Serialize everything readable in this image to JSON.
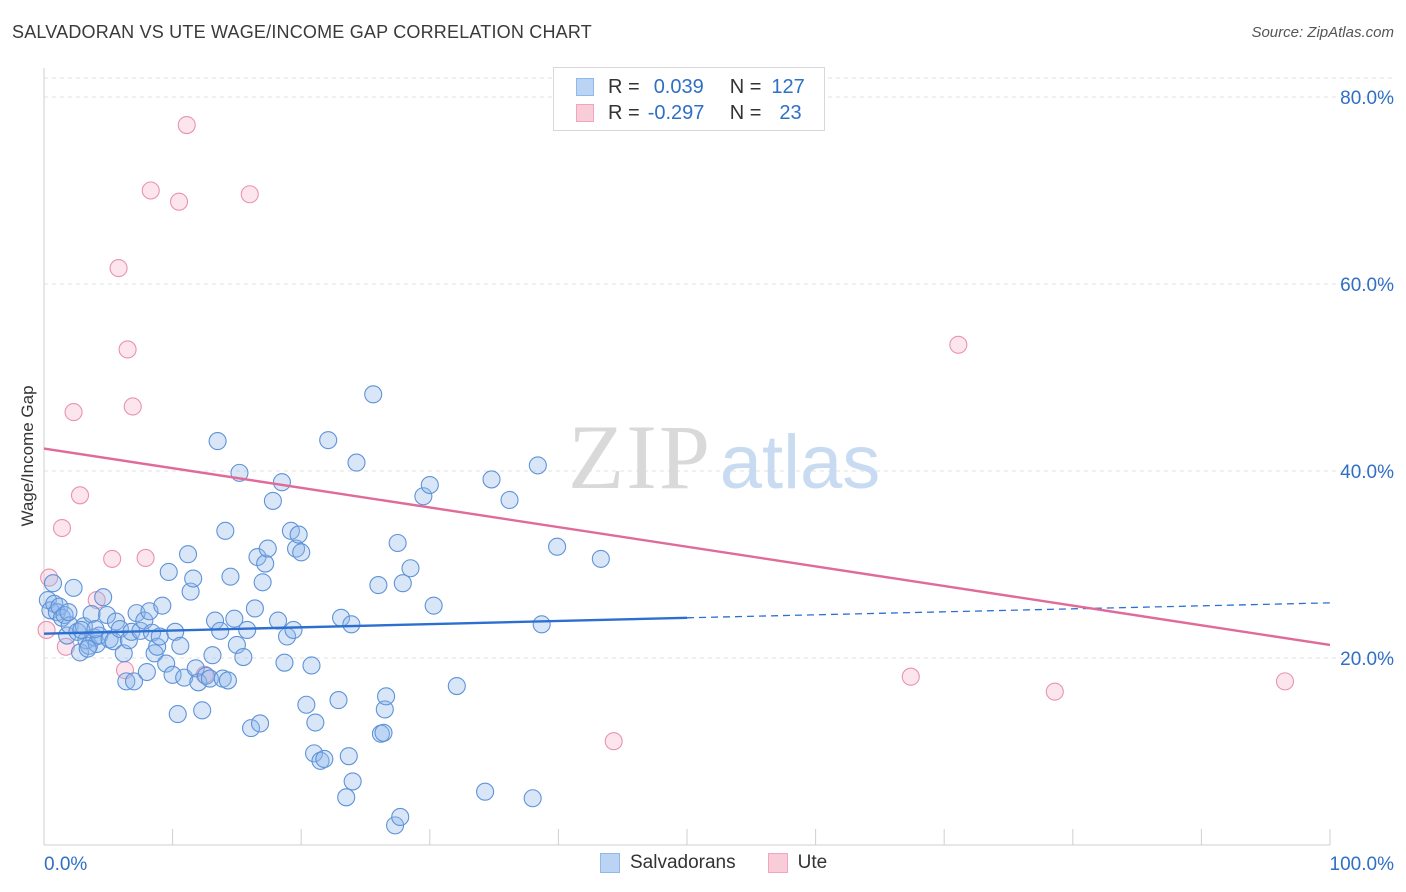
{
  "title": "SALVADORAN VS UTE WAGE/INCOME GAP CORRELATION CHART",
  "source": "Source: ZipAtlas.com",
  "watermark": {
    "zip": "ZIP",
    "atlas": "atlas"
  },
  "legend": {
    "rows": [
      {
        "r_label": "R =",
        "r_value": "0.039",
        "n_label": "N =",
        "n_value": "127",
        "color": "#8fb8ec",
        "fill": "#bcd4f3"
      },
      {
        "r_label": "R =",
        "r_value": "-0.297",
        "n_label": "N =",
        "n_value": "23",
        "color": "#f0a6bf",
        "fill": "#f9ccda"
      }
    ]
  },
  "bottom_legend": {
    "items": [
      "Salvadorans",
      "Ute"
    ]
  },
  "colors": {
    "blue_point_fill": "rgba(143,184,236,0.35)",
    "blue_point_stroke": "#5f93d8",
    "pink_point_fill": "rgba(244,170,196,0.30)",
    "pink_point_stroke": "#e893b0",
    "blue_line": "#2c6fd1",
    "pink_line": "#e06a98",
    "axis_label": "#2f6fc4"
  },
  "chart_data": {
    "type": "scatter",
    "title": "SALVADORAN VS UTE WAGE/INCOME GAP CORRELATION CHART",
    "xlabel": "",
    "ylabel": "Wage/Income Gap",
    "xlim": [
      0,
      100
    ],
    "ylim": [
      0,
      83
    ],
    "x_tick_labels": [
      "0.0%",
      "100.0%"
    ],
    "y_ticks": [
      20,
      40,
      60,
      80
    ],
    "y_tick_labels": [
      "20.0%",
      "40.0%",
      "60.0%",
      "80.0%"
    ],
    "grid": true,
    "series": [
      {
        "name": "Salvadorans",
        "points": [
          [
            0.3,
            26.2
          ],
          [
            0.5,
            25.1
          ],
          [
            0.8,
            25.8
          ],
          [
            1.0,
            24.9
          ],
          [
            1.2,
            25.5
          ],
          [
            1.4,
            24.3
          ],
          [
            1.6,
            24.6
          ],
          [
            1.8,
            22.4
          ],
          [
            2.0,
            23.5
          ],
          [
            2.3,
            27.5
          ],
          [
            2.6,
            22.8
          ],
          [
            2.8,
            20.6
          ],
          [
            3.1,
            23.4
          ],
          [
            3.3,
            21.9
          ],
          [
            3.5,
            21.3
          ],
          [
            3.7,
            24.7
          ],
          [
            3.9,
            22.2
          ],
          [
            4.1,
            21.5
          ],
          [
            4.3,
            22.4
          ],
          [
            4.6,
            26.5
          ],
          [
            4.9,
            24.6
          ],
          [
            5.1,
            22.0
          ],
          [
            5.4,
            21.8
          ],
          [
            5.6,
            23.9
          ],
          [
            5.9,
            23.1
          ],
          [
            6.2,
            20.5
          ],
          [
            6.4,
            17.5
          ],
          [
            6.6,
            21.9
          ],
          [
            6.8,
            22.8
          ],
          [
            7.0,
            17.5
          ],
          [
            7.2,
            24.8
          ],
          [
            7.5,
            22.9
          ],
          [
            7.8,
            24.0
          ],
          [
            8.0,
            18.5
          ],
          [
            8.2,
            25.0
          ],
          [
            8.4,
            22.7
          ],
          [
            8.6,
            20.5
          ],
          [
            8.8,
            21.2
          ],
          [
            9.0,
            22.3
          ],
          [
            9.2,
            25.6
          ],
          [
            9.5,
            19.4
          ],
          [
            9.7,
            29.2
          ],
          [
            10.0,
            18.2
          ],
          [
            10.2,
            22.8
          ],
          [
            10.4,
            14.0
          ],
          [
            10.6,
            21.3
          ],
          [
            10.9,
            17.9
          ],
          [
            11.2,
            31.1
          ],
          [
            11.4,
            27.1
          ],
          [
            11.6,
            28.5
          ],
          [
            11.8,
            18.9
          ],
          [
            12.0,
            17.4
          ],
          [
            12.3,
            14.4
          ],
          [
            12.6,
            18.1
          ],
          [
            12.9,
            17.8
          ],
          [
            13.1,
            20.3
          ],
          [
            13.3,
            24.0
          ],
          [
            13.5,
            43.2
          ],
          [
            13.7,
            22.9
          ],
          [
            13.9,
            17.8
          ],
          [
            14.1,
            33.6
          ],
          [
            14.3,
            17.6
          ],
          [
            14.5,
            28.7
          ],
          [
            14.8,
            24.2
          ],
          [
            15.0,
            21.4
          ],
          [
            15.2,
            39.8
          ],
          [
            15.5,
            20.1
          ],
          [
            15.8,
            23.0
          ],
          [
            16.1,
            12.5
          ],
          [
            16.4,
            25.3
          ],
          [
            16.6,
            30.8
          ],
          [
            16.8,
            13.0
          ],
          [
            17.0,
            28.1
          ],
          [
            17.2,
            30.1
          ],
          [
            17.4,
            31.7
          ],
          [
            17.8,
            36.8
          ],
          [
            18.2,
            24.0
          ],
          [
            18.5,
            38.8
          ],
          [
            18.7,
            19.5
          ],
          [
            18.9,
            22.3
          ],
          [
            19.2,
            33.6
          ],
          [
            19.4,
            23.0
          ],
          [
            19.6,
            31.7
          ],
          [
            19.8,
            33.2
          ],
          [
            20.0,
            31.3
          ],
          [
            20.4,
            15.0
          ],
          [
            20.8,
            19.2
          ],
          [
            21.0,
            9.8
          ],
          [
            21.1,
            13.1
          ],
          [
            21.5,
            9.0
          ],
          [
            21.8,
            9.2
          ],
          [
            22.1,
            43.3
          ],
          [
            22.9,
            15.5
          ],
          [
            23.1,
            24.3
          ],
          [
            23.5,
            5.1
          ],
          [
            23.7,
            9.5
          ],
          [
            23.9,
            23.6
          ],
          [
            24.0,
            6.8
          ],
          [
            24.3,
            40.9
          ],
          [
            25.6,
            48.2
          ],
          [
            26.0,
            27.8
          ],
          [
            26.2,
            11.9
          ],
          [
            26.4,
            12.0
          ],
          [
            26.5,
            14.5
          ],
          [
            26.6,
            15.9
          ],
          [
            27.3,
            2.1
          ],
          [
            27.5,
            32.3
          ],
          [
            27.7,
            3.0
          ],
          [
            27.9,
            28.0
          ],
          [
            28.5,
            29.6
          ],
          [
            30.3,
            25.6
          ],
          [
            32.1,
            17.0
          ],
          [
            34.3,
            5.7
          ],
          [
            34.8,
            39.1
          ],
          [
            36.2,
            36.9
          ],
          [
            38.4,
            40.6
          ],
          [
            38.0,
            5.0
          ],
          [
            38.7,
            23.6
          ],
          [
            39.9,
            31.9
          ],
          [
            43.3,
            30.6
          ],
          [
            29.5,
            37.3
          ],
          [
            30.0,
            38.5
          ],
          [
            0.7,
            28.0
          ],
          [
            1.9,
            24.9
          ],
          [
            2.9,
            23.0
          ],
          [
            3.4,
            21.0
          ],
          [
            4.0,
            23.1
          ]
        ]
      },
      {
        "name": "Ute",
        "points": [
          [
            0.2,
            23.0
          ],
          [
            0.4,
            28.6
          ],
          [
            1.4,
            33.9
          ],
          [
            1.7,
            21.2
          ],
          [
            2.3,
            46.3
          ],
          [
            2.8,
            37.4
          ],
          [
            4.1,
            26.2
          ],
          [
            5.3,
            30.6
          ],
          [
            5.8,
            61.7
          ],
          [
            6.3,
            18.7
          ],
          [
            6.5,
            53.0
          ],
          [
            6.9,
            46.9
          ],
          [
            7.9,
            30.7
          ],
          [
            8.3,
            70.0
          ],
          [
            10.5,
            68.8
          ],
          [
            11.1,
            77.0
          ],
          [
            12.5,
            18.2
          ],
          [
            16.0,
            69.6
          ],
          [
            44.3,
            11.1
          ],
          [
            67.4,
            18.0
          ],
          [
            71.1,
            53.5
          ],
          [
            78.6,
            16.4
          ],
          [
            96.5,
            17.5
          ]
        ]
      }
    ],
    "trendlines": [
      {
        "series": "Salvadorans",
        "solid": [
          [
            0,
            22.6
          ],
          [
            50,
            24.3
          ]
        ],
        "dashed": [
          [
            50,
            24.3
          ],
          [
            100,
            25.9
          ]
        ]
      },
      {
        "series": "Ute",
        "solid": [
          [
            0,
            42.4
          ],
          [
            100,
            21.4
          ]
        ]
      }
    ]
  }
}
